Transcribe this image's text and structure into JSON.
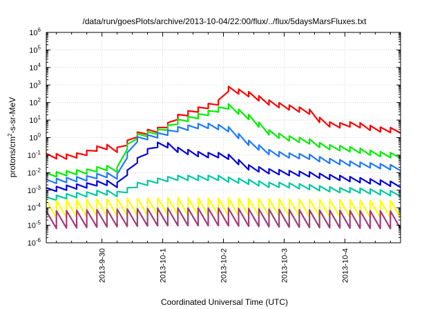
{
  "chart_data": {
    "type": "line",
    "title": "/data/run/goesPlots/archive/2013-10-04/22:00/flux/../flux/5daysMarsFluxes.txt",
    "xlabel": "Coordinated Universal Time (UTC)",
    "ylabel": {
      "pre": "protons/cm",
      "sup": "2",
      "post": "-s-sr-MeV"
    },
    "x_axis": "datetime",
    "xlim": [
      "2013-09-29T02:00",
      "2013-10-04T22:00"
    ],
    "x_ticks": [
      "2013-9-30",
      "2013-10-1",
      "2013-10-2",
      "2013-10-3",
      "2013-10-4"
    ],
    "y_scale": "log",
    "ylim": [
      1e-06,
      1000000.0
    ],
    "y_ticks": [
      {
        "base": "10",
        "exp": "-6"
      },
      {
        "base": "10",
        "exp": "-5"
      },
      {
        "base": "10",
        "exp": "-4"
      },
      {
        "base": "10",
        "exp": "-3"
      },
      {
        "base": "10",
        "exp": "-2"
      },
      {
        "base": "10",
        "exp": "-1"
      },
      {
        "base": "10",
        "exp": "0"
      },
      {
        "base": "10",
        "exp": "1"
      },
      {
        "base": "10",
        "exp": "2"
      },
      {
        "base": "10",
        "exp": "3"
      },
      {
        "base": "10",
        "exp": "4"
      },
      {
        "base": "10",
        "exp": "5"
      },
      {
        "base": "10",
        "exp": "6"
      }
    ],
    "grid": true,
    "legend": "none",
    "sawtooth_period_hours": 4,
    "series": [
      {
        "color": "#ff0000",
        "points": [
          [
            "2013-09-29T02:00",
            0.09
          ],
          [
            "2013-09-29T12:00",
            0.08
          ],
          [
            "2013-09-29T20:00",
            0.16
          ],
          [
            "2013-09-30T00:00",
            0.35
          ],
          [
            "2013-09-30T06:00",
            0.2
          ],
          [
            "2013-09-30T10:00",
            0.5
          ],
          [
            "2013-09-30T14:00",
            1.5
          ],
          [
            "2013-09-30T20:00",
            2.5
          ],
          [
            "2013-10-01T00:00",
            3
          ],
          [
            "2013-10-01T06:00",
            15
          ],
          [
            "2013-10-01T16:00",
            50
          ],
          [
            "2013-10-01T22:00",
            100
          ],
          [
            "2013-10-02T02:00",
            600
          ],
          [
            "2013-10-02T10:00",
            300
          ],
          [
            "2013-10-02T18:00",
            100
          ],
          [
            "2013-10-03T00:00",
            60
          ],
          [
            "2013-10-03T10:00",
            30
          ],
          [
            "2013-10-03T16:00",
            6
          ],
          [
            "2013-10-03T22:00",
            5
          ],
          [
            "2013-10-04T04:00",
            6
          ],
          [
            "2013-10-04T12:00",
            3
          ],
          [
            "2013-10-04T22:00",
            2.5
          ]
        ]
      },
      {
        "color": "#00ee00",
        "points": [
          [
            "2013-09-29T02:00",
            0.007
          ],
          [
            "2013-09-29T12:00",
            0.01
          ],
          [
            "2013-09-29T20:00",
            0.012
          ],
          [
            "2013-09-30T00:00",
            0.02
          ],
          [
            "2013-09-30T06:00",
            0.015
          ],
          [
            "2013-09-30T10:00",
            0.3
          ],
          [
            "2013-09-30T14:00",
            1.2
          ],
          [
            "2013-09-30T20:00",
            1.8
          ],
          [
            "2013-10-01T00:00",
            2.5
          ],
          [
            "2013-10-01T06:00",
            8
          ],
          [
            "2013-10-01T16:00",
            20
          ],
          [
            "2013-10-01T22:00",
            40
          ],
          [
            "2013-10-02T02:00",
            60
          ],
          [
            "2013-10-02T10:00",
            15
          ],
          [
            "2013-10-02T18:00",
            2
          ],
          [
            "2013-10-03T00:00",
            1
          ],
          [
            "2013-10-03T10:00",
            0.6
          ],
          [
            "2013-10-03T16:00",
            0.3
          ],
          [
            "2013-10-03T22:00",
            0.25
          ],
          [
            "2013-10-04T04:00",
            0.2
          ],
          [
            "2013-10-04T12:00",
            0.12
          ],
          [
            "2013-10-04T22:00",
            0.09
          ]
        ]
      },
      {
        "color": "#1e78ff",
        "points": [
          [
            "2013-09-29T02:00",
            0.003
          ],
          [
            "2013-09-29T12:00",
            0.004
          ],
          [
            "2013-09-29T20:00",
            0.005
          ],
          [
            "2013-09-30T00:00",
            0.008
          ],
          [
            "2013-09-30T06:00",
            0.006
          ],
          [
            "2013-09-30T10:00",
            0.1
          ],
          [
            "2013-09-30T14:00",
            0.8
          ],
          [
            "2013-09-30T20:00",
            1.2
          ],
          [
            "2013-10-01T00:00",
            1.5
          ],
          [
            "2013-10-01T06:00",
            3
          ],
          [
            "2013-10-01T16:00",
            5
          ],
          [
            "2013-10-01T22:00",
            4
          ],
          [
            "2013-10-02T02:00",
            3
          ],
          [
            "2013-10-02T10:00",
            0.5
          ],
          [
            "2013-10-02T18:00",
            0.15
          ],
          [
            "2013-10-03T00:00",
            0.1
          ],
          [
            "2013-10-03T10:00",
            0.08
          ],
          [
            "2013-10-03T16:00",
            0.05
          ],
          [
            "2013-10-03T22:00",
            0.04
          ],
          [
            "2013-10-04T04:00",
            0.03
          ],
          [
            "2013-10-04T12:00",
            0.025
          ],
          [
            "2013-10-04T22:00",
            0.018
          ]
        ]
      },
      {
        "color": "#0000dd",
        "points": [
          [
            "2013-09-29T02:00",
            0.001
          ],
          [
            "2013-09-29T12:00",
            0.0015
          ],
          [
            "2013-09-29T20:00",
            0.002
          ],
          [
            "2013-09-30T00:00",
            0.003
          ],
          [
            "2013-09-30T06:00",
            0.002
          ],
          [
            "2013-09-30T10:00",
            0.01
          ],
          [
            "2013-09-30T14:00",
            0.05
          ],
          [
            "2013-09-30T20:00",
            0.3
          ],
          [
            "2013-10-01T00:00",
            0.5
          ],
          [
            "2013-10-01T06:00",
            0.2
          ],
          [
            "2013-10-01T16:00",
            0.1
          ],
          [
            "2013-10-01T22:00",
            0.1
          ],
          [
            "2013-10-02T02:00",
            0.08
          ],
          [
            "2013-10-02T10:00",
            0.02
          ],
          [
            "2013-10-02T18:00",
            0.012
          ],
          [
            "2013-10-03T00:00",
            0.01
          ],
          [
            "2013-10-03T10:00",
            0.008
          ],
          [
            "2013-10-03T16:00",
            0.006
          ],
          [
            "2013-10-03T22:00",
            0.005
          ],
          [
            "2013-10-04T04:00",
            0.004
          ],
          [
            "2013-10-04T12:00",
            0.003
          ],
          [
            "2013-10-04T22:00",
            0.002
          ]
        ]
      },
      {
        "color": "#00c8a0",
        "points": [
          [
            "2013-09-29T02:00",
            0.0003
          ],
          [
            "2013-09-29T12:00",
            0.0005
          ],
          [
            "2013-09-29T20:00",
            0.0006
          ],
          [
            "2013-09-30T00:00",
            0.0008
          ],
          [
            "2013-09-30T06:00",
            0.0006
          ],
          [
            "2013-09-30T10:00",
            0.001
          ],
          [
            "2013-09-30T14:00",
            0.002
          ],
          [
            "2013-09-30T20:00",
            0.003
          ],
          [
            "2013-10-01T00:00",
            0.004
          ],
          [
            "2013-10-01T06:00",
            0.005
          ],
          [
            "2013-10-01T16:00",
            0.005
          ],
          [
            "2013-10-01T22:00",
            0.005
          ],
          [
            "2013-10-02T02:00",
            0.004
          ],
          [
            "2013-10-02T10:00",
            0.003
          ],
          [
            "2013-10-02T18:00",
            0.002
          ],
          [
            "2013-10-03T00:00",
            0.002
          ],
          [
            "2013-10-03T10:00",
            0.0015
          ],
          [
            "2013-10-03T16:00",
            0.0012
          ],
          [
            "2013-10-03T22:00",
            0.001
          ],
          [
            "2013-10-04T04:00",
            0.001
          ],
          [
            "2013-10-04T12:00",
            0.0008
          ],
          [
            "2013-10-04T22:00",
            0.0006
          ]
        ]
      },
      {
        "color": "#ffff00",
        "points": [
          [
            "2013-09-29T02:00",
            8e-05
          ],
          [
            "2013-09-30T00:00",
            0.0001
          ],
          [
            "2013-10-01T00:00",
            0.00012
          ],
          [
            "2013-10-02T00:00",
            0.00011
          ],
          [
            "2013-10-03T00:00",
            0.0001
          ],
          [
            "2013-10-04T00:00",
            9e-05
          ],
          [
            "2013-10-04T22:00",
            8e-05
          ]
        ]
      },
      {
        "color": "#a03c78",
        "points": [
          [
            "2013-09-29T02:00",
            2e-05
          ],
          [
            "2013-09-30T00:00",
            2.5e-05
          ],
          [
            "2013-10-01T00:00",
            3e-05
          ],
          [
            "2013-10-02T00:00",
            3e-05
          ],
          [
            "2013-10-03T00:00",
            2.5e-05
          ],
          [
            "2013-10-04T00:00",
            2.2e-05
          ],
          [
            "2013-10-04T22:00",
            2e-05
          ]
        ]
      }
    ]
  }
}
